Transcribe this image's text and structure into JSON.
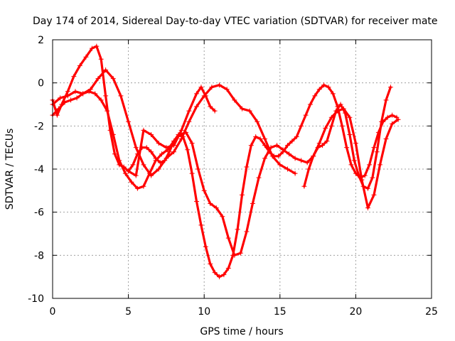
{
  "chart_data": {
    "type": "scatter",
    "title": "Day 174 of 2014, Sidereal Day-to-day VTEC variation (SDTVAR) for receiver mate",
    "xlabel": "GPS time / hours",
    "ylabel": "SDTVAR / TECUs",
    "xlim": [
      0,
      25
    ],
    "ylim": [
      -10,
      2
    ],
    "xticks": [
      0,
      5,
      10,
      15,
      20,
      25
    ],
    "yticks": [
      -10,
      -8,
      -6,
      -4,
      -2,
      0,
      2
    ],
    "grid": true,
    "marker": "plus",
    "colors": {
      "series": "#ff0000",
      "grid": "#a0a0a0",
      "axes": "#000000"
    },
    "series": [
      {
        "x": [
          0.0,
          0.3,
          0.6,
          1.0,
          1.4,
          1.8,
          2.2,
          2.6,
          2.9,
          3.2,
          3.5,
          3.8,
          4.1,
          4.4,
          4.7,
          5.0,
          5.3,
          5.6,
          5.9,
          6.2,
          6.5,
          6.8,
          7.1,
          7.4,
          7.7,
          8.0,
          8.3,
          8.6,
          8.9,
          9.2,
          9.5,
          9.8,
          10.1,
          10.4,
          10.7,
          11.0,
          11.3,
          11.6,
          11.9,
          12.2,
          12.5,
          12.8,
          13.1,
          13.4,
          13.7,
          14.0,
          14.3,
          14.6,
          14.9,
          15.2,
          15.5,
          15.8,
          16.1,
          16.4,
          16.7,
          17.0,
          17.3,
          17.6,
          17.9,
          18.2,
          18.5,
          18.8,
          19.1,
          19.4,
          19.7,
          20.0,
          20.3,
          20.6,
          20.9,
          21.2,
          21.5,
          21.8,
          22.1,
          22.4,
          22.7
        ],
        "y": [
          -0.8,
          -1.5,
          -1.0,
          -0.4,
          0.3,
          0.8,
          1.2,
          1.6,
          1.7,
          1.1,
          -0.6,
          -2.2,
          -3.3,
          -3.8,
          -3.9,
          -4.1,
          -3.8,
          -3.3,
          -3.0,
          -3.0,
          -3.2,
          -3.5,
          -3.7,
          -3.6,
          -3.2,
          -2.7,
          -2.4,
          -2.5,
          -3.1,
          -4.2,
          -5.5,
          -6.6,
          -7.6,
          -8.4,
          -8.8,
          -9.0,
          -8.9,
          -8.6,
          -8.0,
          -6.8,
          -5.2,
          -3.9,
          -2.9,
          -2.5,
          -2.6,
          -2.9,
          -3.2,
          -3.4,
          -3.4,
          -3.2,
          -2.9,
          -2.7,
          -2.5,
          -2.0,
          -1.5,
          -1.0,
          -0.6,
          -0.3,
          -0.1,
          -0.2,
          -0.5,
          -1.1,
          -2.0,
          -3.0,
          -3.8,
          -4.2,
          -4.4,
          -4.3,
          -3.8,
          -3.0,
          -2.3,
          -1.8,
          -1.6,
          -1.5,
          -1.6
        ]
      },
      {
        "x": [
          0.0,
          0.4,
          0.8,
          1.2,
          1.6,
          2.0,
          2.4,
          2.8,
          3.2,
          3.6,
          4.0,
          4.4,
          4.8,
          5.2,
          5.6,
          6.0,
          6.4,
          6.8,
          7.2,
          7.6,
          8.0,
          8.4,
          8.8,
          9.2,
          9.6,
          10.0,
          10.4,
          10.8,
          11.2,
          11.6,
          12.0,
          12.4,
          12.8,
          13.2,
          13.6,
          14.0,
          14.4,
          14.8,
          15.2,
          15.6,
          16.0,
          16.4,
          16.8,
          17.2,
          17.6,
          18.0,
          18.4,
          18.8,
          19.2,
          19.6,
          20.0,
          20.4,
          20.8,
          21.2,
          21.6,
          22.0,
          22.4,
          22.8
        ],
        "y": [
          -1.5,
          -1.2,
          -0.9,
          -0.8,
          -0.7,
          -0.5,
          -0.4,
          -0.5,
          -0.8,
          -1.3,
          -2.4,
          -3.6,
          -4.2,
          -4.6,
          -4.9,
          -4.8,
          -4.2,
          -3.6,
          -3.3,
          -3.1,
          -2.7,
          -2.4,
          -2.3,
          -2.8,
          -4.0,
          -5.0,
          -5.6,
          -5.8,
          -6.2,
          -7.2,
          -8.0,
          -7.9,
          -6.9,
          -5.6,
          -4.4,
          -3.5,
          -3.0,
          -2.9,
          -3.1,
          -3.3,
          -3.5,
          -3.6,
          -3.7,
          -3.4,
          -2.8,
          -2.1,
          -1.6,
          -1.3,
          -1.2,
          -1.6,
          -2.8,
          -4.5,
          -5.8,
          -5.2,
          -3.8,
          -2.6,
          -1.9,
          -1.7
        ]
      },
      {
        "x": [
          0.0,
          0.5,
          1.0,
          1.5,
          2.0,
          2.5,
          3.0,
          3.5,
          4.0,
          4.5,
          5.0,
          5.5,
          6.0,
          6.5,
          7.0,
          7.5,
          8.0,
          8.5,
          9.0,
          9.5,
          10.0,
          10.5,
          11.0,
          11.5,
          12.0,
          12.5,
          13.0,
          13.5,
          14.0,
          14.5,
          15.0,
          15.5,
          16.0
        ],
        "y": [
          -1.0,
          -0.7,
          -0.6,
          -0.4,
          -0.5,
          -0.3,
          0.2,
          0.6,
          0.2,
          -0.6,
          -1.8,
          -3.0,
          -3.8,
          -4.3,
          -4.0,
          -3.5,
          -3.2,
          -2.6,
          -1.8,
          -1.1,
          -0.6,
          -0.2,
          -0.1,
          -0.3,
          -0.8,
          -1.2,
          -1.3,
          -1.8,
          -2.6,
          -3.4,
          -3.8,
          -4.0,
          -4.2
        ]
      },
      {
        "x": [
          5.0,
          5.5,
          6.0,
          6.5,
          7.0,
          7.5,
          8.0,
          8.5,
          9.0,
          9.5,
          9.8,
          10.1,
          10.4,
          10.7
        ],
        "y": [
          -4.1,
          -4.3,
          -2.2,
          -2.4,
          -2.8,
          -3.0,
          -2.9,
          -2.2,
          -1.3,
          -0.5,
          -0.2,
          -0.6,
          -1.1,
          -1.3
        ]
      },
      {
        "x": [
          16.6,
          16.9,
          17.2,
          17.5,
          17.8,
          18.1,
          18.4,
          18.7,
          19.0,
          19.3,
          19.6,
          19.9,
          20.2,
          20.5,
          20.8,
          21.1,
          21.4,
          21.7,
          22.0,
          22.3
        ],
        "y": [
          -4.8,
          -4.0,
          -3.4,
          -3.0,
          -2.9,
          -2.7,
          -2.0,
          -1.3,
          -1.0,
          -1.4,
          -2.4,
          -3.6,
          -4.3,
          -4.8,
          -4.9,
          -4.4,
          -3.2,
          -1.8,
          -0.8,
          -0.2
        ]
      }
    ]
  }
}
